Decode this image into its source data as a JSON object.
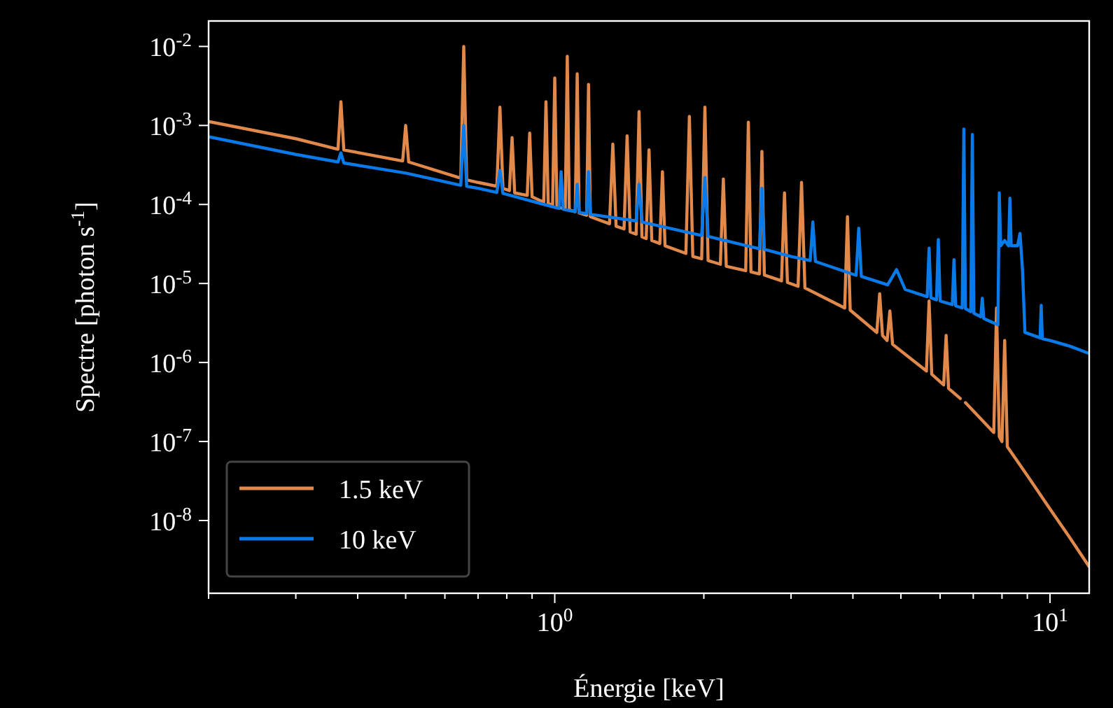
{
  "chart_data": {
    "type": "line",
    "xlabel": "Énergie [keV]",
    "ylabel": "Spectre [photon s$^{-1}$]",
    "log": "xy",
    "legend": "bottom left",
    "xlim": [
      0.2,
      12
    ],
    "ylim": [
      1.2e-09,
      0.021
    ],
    "xticks": [
      {
        "value": 0.2,
        "label": null
      },
      {
        "value": 0.3,
        "label": null
      },
      {
        "value": 0.4,
        "label": null
      },
      {
        "value": 0.5,
        "label": null
      },
      {
        "value": 0.6,
        "label": null
      },
      {
        "value": 0.7,
        "label": null
      },
      {
        "value": 0.8,
        "label": null
      },
      {
        "value": 0.9,
        "label": null
      },
      {
        "value": 1,
        "label": "10$^{0}$"
      },
      {
        "value": 2,
        "label": null
      },
      {
        "value": 3,
        "label": null
      },
      {
        "value": 4,
        "label": null
      },
      {
        "value": 5,
        "label": null
      },
      {
        "value": 6,
        "label": null
      },
      {
        "value": 7,
        "label": null
      },
      {
        "value": 8,
        "label": null
      },
      {
        "value": 9,
        "label": null
      },
      {
        "value": 10,
        "label": "10$^{1}$"
      }
    ],
    "yticks": [
      {
        "value": 1e-08,
        "label": "10$^{-8}$"
      },
      {
        "value": 1e-07,
        "label": "10$^{-7}$"
      },
      {
        "value": 1e-06,
        "label": "10$^{-6}$"
      },
      {
        "value": 1e-05,
        "label": "10$^{-5}$"
      },
      {
        "value": 0.0001,
        "label": "10$^{-4}$"
      },
      {
        "value": 0.001,
        "label": "10$^{-3}$"
      },
      {
        "value": 0.01,
        "label": "10$^{-2}$"
      }
    ],
    "series": [
      {
        "name": "1.5 keV",
        "color": "#e0894a",
        "x": [
          0.2,
          0.3,
          0.365,
          0.37,
          0.375,
          0.493,
          0.5,
          0.507,
          0.646,
          0.655,
          0.664,
          0.7,
          0.764,
          0.775,
          0.786,
          0.81,
          0.82,
          0.83,
          0.88,
          0.89,
          0.9,
          0.95,
          0.96,
          0.97,
          0.99,
          1.0,
          1.01,
          1.05,
          1.06,
          1.07,
          1.1,
          1.11,
          1.12,
          1.16,
          1.17,
          1.18,
          1.29,
          1.31,
          1.33,
          1.38,
          1.4,
          1.42,
          1.46,
          1.48,
          1.5,
          1.53,
          1.55,
          1.57,
          1.63,
          1.65,
          1.67,
          1.84,
          1.87,
          1.9,
          1.98,
          2.01,
          2.04,
          2.16,
          2.19,
          2.22,
          2.43,
          2.46,
          2.49,
          2.59,
          2.62,
          2.65,
          2.87,
          2.91,
          2.95,
          3.1,
          3.15,
          3.2,
          3.85,
          3.9,
          3.95,
          4.47,
          4.53,
          4.59,
          4.69,
          4.75,
          4.81,
          5.63,
          5.7,
          5.77,
          6.1,
          6.17,
          6.24,
          6.59,
          6.67,
          6.75,
          7.7,
          7.8,
          7.9,
          8.0,
          8.1,
          8.2,
          9,
          10,
          11,
          12
        ],
        "values": [
          0.00112,
          0.00068,
          0.0005,
          0.002,
          0.00049,
          0.000355,
          0.001,
          0.000345,
          0.000215,
          0.01,
          0.000205,
          0.00019,
          0.00017,
          0.0017,
          0.00016,
          0.00015,
          0.0007,
          0.00014,
          0.00013,
          0.0008,
          0.000125,
          0.000107,
          0.002,
          0.000103,
          9.7e-05,
          0.004,
          9.3e-05,
          8.8e-05,
          0.0075,
          8.5e-05,
          8.1e-05,
          0.0045,
          7.8e-05,
          7.3e-05,
          0.0033,
          7e-05,
          5.7e-05,
          0.00058,
          5.3e-05,
          4.9e-05,
          0.00074,
          4.5e-05,
          4.2e-05,
          0.0015,
          3.9e-05,
          3.7e-05,
          0.00049,
          3.5e-05,
          3.2e-05,
          0.00026,
          3e-05,
          2.4e-05,
          0.0013,
          2.2e-05,
          2.05e-05,
          0.0017,
          1.95e-05,
          1.75e-05,
          0.00021,
          1.65e-05,
          1.45e-05,
          0.0011,
          1.4e-05,
          1.32e-05,
          0.00047,
          1.28e-05,
          1.08e-05,
          0.00014,
          1.03e-05,
          9.2e-06,
          0.00019,
          8.8e-06,
          4.9e-06,
          7e-05,
          4.6e-06,
          2.4e-06,
          7.4e-06,
          2.2e-06,
          1.9e-06,
          4.5e-06,
          1.7e-06,
          7.8e-07,
          6e-06,
          7.1e-07,
          5.2e-07,
          2.2e-06,
          4.7e-07,
          3.5e-07,
          null,
          3.1e-07,
          1.3e-07,
          4.9e-06,
          1.15e-07,
          1e-07,
          1.9e-06,
          8.6e-08,
          3.7e-08,
          1.4e-08,
          5.9e-09,
          2.6e-09
        ]
      },
      {
        "name": "10 keV",
        "color": "#0a7ae8",
        "x": [
          0.2,
          0.3,
          0.365,
          0.37,
          0.375,
          0.5,
          0.646,
          0.655,
          0.664,
          0.7,
          0.764,
          0.775,
          0.786,
          1.0,
          1.02,
          1.03,
          1.04,
          1.1,
          1.11,
          1.12,
          1.16,
          1.17,
          1.18,
          1.46,
          1.48,
          1.5,
          1.98,
          2.01,
          2.04,
          2.59,
          2.62,
          2.65,
          3.0,
          3.28,
          3.32,
          3.36,
          4.06,
          4.11,
          4.16,
          4.7,
          4.9,
          5.1,
          5.65,
          5.7,
          5.75,
          5.9,
          5.95,
          6.0,
          6.35,
          6.4,
          6.45,
          6.65,
          6.7,
          6.75,
          6.92,
          6.97,
          7.02,
          7.25,
          7.3,
          7.35,
          7.85,
          7.9,
          7.95,
          8.1,
          8.25,
          8.3,
          8.35,
          8.6,
          8.7,
          8.8,
          8.9,
          9.55,
          9.6,
          9.65,
          10,
          11,
          12
        ],
        "values": [
          0.00072,
          0.00043,
          0.000345,
          0.00045,
          0.000335,
          0.00025,
          0.000175,
          0.001,
          0.00017,
          0.00016,
          0.000142,
          0.00027,
          0.000138,
          9.2e-05,
          8.9e-05,
          0.00026,
          8.7e-05,
          8.1e-05,
          0.00018,
          7.9e-05,
          7.7e-05,
          0.00026,
          7.5e-05,
          6.2e-05,
          0.00018,
          6e-05,
          4.05e-05,
          0.00022,
          3.95e-05,
          2.75e-05,
          0.00016,
          2.7e-05,
          2.2e-05,
          1.95e-05,
          6e-05,
          1.9e-05,
          1.27e-05,
          5e-05,
          1.23e-05,
          9.6e-06,
          1.5e-05,
          8.4e-06,
          6.8e-06,
          2.8e-05,
          6.6e-06,
          6.2e-06,
          3.6e-05,
          6e-06,
          5.4e-06,
          2e-05,
          5.2e-06,
          4.9e-06,
          0.0009,
          4.8e-06,
          4.4e-06,
          0.00077,
          4.2e-06,
          3.8e-06,
          6.5e-06,
          3.6e-06,
          3e-06,
          0.00014,
          3e-05,
          3.5e-05,
          3e-05,
          0.00012,
          3e-05,
          3e-05,
          4.3e-05,
          1.5e-05,
          2.4e-06,
          2.05e-06,
          5.3e-06,
          2e-06,
          1.9e-06,
          1.6e-06,
          1.3e-06
        ]
      }
    ]
  }
}
